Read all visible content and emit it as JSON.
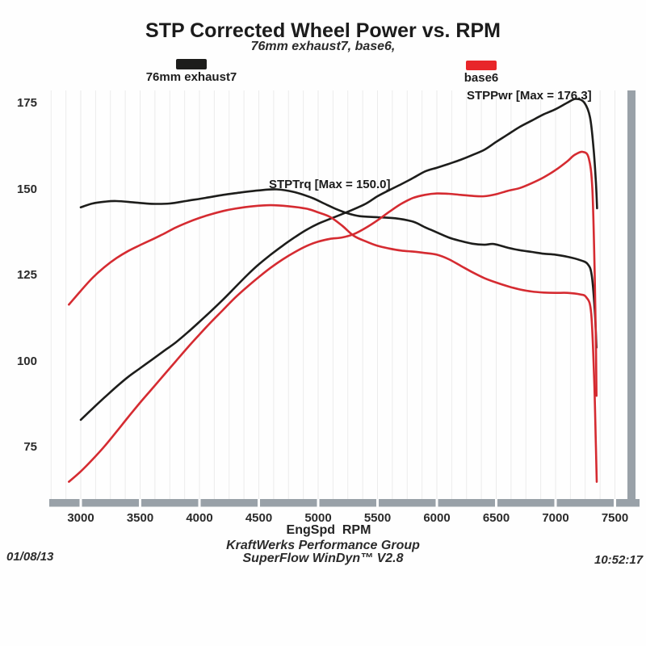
{
  "page": {
    "date": "01/08/13",
    "time": "10:52:17",
    "footer_line1": "KraftWerks Performance Group",
    "footer_line2": "SuperFlow WinDyn™ V2.8"
  },
  "legend": [
    {
      "label": "76mm exhaust7",
      "color": "#1d1d1b"
    },
    {
      "label": "base6",
      "color": "#e8262a"
    }
  ],
  "annotations": [
    {
      "text": "STPPwr [Max = 176.3]"
    },
    {
      "text": "STPTrq [Max = 150.0]"
    }
  ],
  "colors": {
    "curve_black": "#1d1d1b",
    "curve_red": "#d52b31",
    "axis_bar": "#99a1a8",
    "grid": "#ebebeb",
    "text": "#1f1f1f"
  },
  "chart_data": {
    "type": "line",
    "title": "STP Corrected Wheel Power vs. RPM",
    "subtitle": "76mm exhaust7, base6,",
    "xlabel": "EngSpd  RPM",
    "x_ticks": [
      3000,
      3500,
      4000,
      4500,
      5000,
      5500,
      6000,
      6500,
      7000,
      7500
    ],
    "y_ticks": [
      175,
      150,
      125,
      100,
      75
    ],
    "x_range_rpm": [
      2735,
      7600
    ],
    "y_range": [
      60,
      179
    ],
    "grid": "faint vertical minor gridlines every 125 RPM, no horizontal gridlines",
    "legend_position": "top",
    "series": [
      {
        "id": "76mm-exhaust7-stppwr",
        "name": "76mm exhaust7 — STPPwr",
        "color": "#1d1d1b",
        "points": [
          [
            3000,
            83
          ],
          [
            3100,
            86.3
          ],
          [
            3200,
            89.5
          ],
          [
            3300,
            92.6
          ],
          [
            3400,
            95.5
          ],
          [
            3500,
            98
          ],
          [
            3600,
            100.5
          ],
          [
            3700,
            103
          ],
          [
            3800,
            105.5
          ],
          [
            3900,
            108.4
          ],
          [
            4000,
            111.5
          ],
          [
            4100,
            114.7
          ],
          [
            4200,
            118
          ],
          [
            4300,
            121.5
          ],
          [
            4400,
            125
          ],
          [
            4500,
            128.2
          ],
          [
            4600,
            131
          ],
          [
            4700,
            133.6
          ],
          [
            4800,
            136
          ],
          [
            4900,
            138.2
          ],
          [
            5000,
            140
          ],
          [
            5100,
            141.4
          ],
          [
            5250,
            143.5
          ],
          [
            5400,
            145.8
          ],
          [
            5500,
            148
          ],
          [
            5600,
            149.8
          ],
          [
            5700,
            151.5
          ],
          [
            5800,
            153.3
          ],
          [
            5900,
            155.2
          ],
          [
            6000,
            156.3
          ],
          [
            6100,
            157.4
          ],
          [
            6200,
            158.6
          ],
          [
            6300,
            160
          ],
          [
            6400,
            161.5
          ],
          [
            6500,
            163.8
          ],
          [
            6600,
            166
          ],
          [
            6700,
            168.2
          ],
          [
            6800,
            170
          ],
          [
            6900,
            171.8
          ],
          [
            7000,
            173.3
          ],
          [
            7100,
            175.2
          ],
          [
            7170,
            176.3
          ],
          [
            7240,
            175.3
          ],
          [
            7290,
            171
          ],
          [
            7320,
            162
          ],
          [
            7340,
            152
          ],
          [
            7350,
            144.5
          ]
        ]
      },
      {
        "id": "76mm-exhaust7-stptrq",
        "name": "76mm exhaust7 — STPTrq",
        "color": "#1d1d1b",
        "points": [
          [
            3000,
            144.8
          ],
          [
            3100,
            145.9
          ],
          [
            3200,
            146.4
          ],
          [
            3300,
            146.6
          ],
          [
            3450,
            146.2
          ],
          [
            3600,
            145.8
          ],
          [
            3750,
            145.9
          ],
          [
            3900,
            146.7
          ],
          [
            4050,
            147.5
          ],
          [
            4200,
            148.4
          ],
          [
            4350,
            149.1
          ],
          [
            4500,
            149.7
          ],
          [
            4650,
            150
          ],
          [
            4800,
            149.2
          ],
          [
            4950,
            147.5
          ],
          [
            5050,
            145.9
          ],
          [
            5150,
            144.3
          ],
          [
            5250,
            143
          ],
          [
            5350,
            142.2
          ],
          [
            5500,
            141.9
          ],
          [
            5650,
            141.6
          ],
          [
            5800,
            140.6
          ],
          [
            5900,
            139
          ],
          [
            6000,
            137.5
          ],
          [
            6100,
            136
          ],
          [
            6200,
            135
          ],
          [
            6300,
            134.2
          ],
          [
            6400,
            133.9
          ],
          [
            6480,
            134.1
          ],
          [
            6600,
            133
          ],
          [
            6700,
            132.3
          ],
          [
            6800,
            131.8
          ],
          [
            6900,
            131.3
          ],
          [
            7000,
            131
          ],
          [
            7100,
            130.4
          ],
          [
            7200,
            129.5
          ],
          [
            7270,
            128.3
          ],
          [
            7305,
            125
          ],
          [
            7330,
            115
          ],
          [
            7345,
            104
          ]
        ]
      },
      {
        "id": "base6-stppwr",
        "name": "base6 — STPPwr",
        "color": "#d52b31",
        "points": [
          [
            2900,
            65
          ],
          [
            3000,
            68
          ],
          [
            3100,
            71.5
          ],
          [
            3200,
            75.3
          ],
          [
            3300,
            79.5
          ],
          [
            3400,
            83.8
          ],
          [
            3500,
            88
          ],
          [
            3600,
            92
          ],
          [
            3700,
            96
          ],
          [
            3800,
            100
          ],
          [
            3900,
            104
          ],
          [
            4000,
            107.8
          ],
          [
            4100,
            111.5
          ],
          [
            4200,
            115
          ],
          [
            4300,
            118.5
          ],
          [
            4400,
            121.6
          ],
          [
            4500,
            124.5
          ],
          [
            4600,
            127.2
          ],
          [
            4700,
            129.6
          ],
          [
            4800,
            131.7
          ],
          [
            4900,
            133.5
          ],
          [
            5000,
            134.8
          ],
          [
            5100,
            135.6
          ],
          [
            5200,
            136
          ],
          [
            5300,
            137
          ],
          [
            5400,
            138.8
          ],
          [
            5500,
            141
          ],
          [
            5600,
            143.5
          ],
          [
            5700,
            145.8
          ],
          [
            5800,
            147.5
          ],
          [
            5900,
            148.4
          ],
          [
            6000,
            148.8
          ],
          [
            6100,
            148.7
          ],
          [
            6200,
            148.4
          ],
          [
            6300,
            148.1
          ],
          [
            6400,
            148
          ],
          [
            6500,
            148.6
          ],
          [
            6600,
            149.6
          ],
          [
            6700,
            150.4
          ],
          [
            6800,
            151.8
          ],
          [
            6900,
            153.5
          ],
          [
            7000,
            155.6
          ],
          [
            7100,
            158.2
          ],
          [
            7160,
            160
          ],
          [
            7230,
            160.9
          ],
          [
            7280,
            159
          ],
          [
            7310,
            150
          ],
          [
            7330,
            125
          ],
          [
            7340,
            105
          ],
          [
            7345,
            90
          ]
        ]
      },
      {
        "id": "base6-stptrq",
        "name": "base6 — STPTrq",
        "color": "#d52b31",
        "points": [
          [
            2900,
            116.5
          ],
          [
            3000,
            120.5
          ],
          [
            3100,
            124.3
          ],
          [
            3200,
            127.4
          ],
          [
            3300,
            130
          ],
          [
            3400,
            132.1
          ],
          [
            3500,
            133.8
          ],
          [
            3600,
            135.4
          ],
          [
            3700,
            137.1
          ],
          [
            3800,
            138.9
          ],
          [
            3900,
            140.4
          ],
          [
            4000,
            141.7
          ],
          [
            4100,
            142.8
          ],
          [
            4200,
            143.7
          ],
          [
            4300,
            144.4
          ],
          [
            4450,
            145.1
          ],
          [
            4600,
            145.4
          ],
          [
            4750,
            145.1
          ],
          [
            4900,
            144.4
          ],
          [
            5000,
            143.3
          ],
          [
            5100,
            142
          ],
          [
            5200,
            139.5
          ],
          [
            5300,
            136.5
          ],
          [
            5400,
            134.9
          ],
          [
            5500,
            133.6
          ],
          [
            5600,
            132.8
          ],
          [
            5700,
            132.2
          ],
          [
            5800,
            131.9
          ],
          [
            5900,
            131.5
          ],
          [
            6000,
            131
          ],
          [
            6100,
            129.7
          ],
          [
            6200,
            127.8
          ],
          [
            6300,
            125.9
          ],
          [
            6400,
            124.2
          ],
          [
            6500,
            122.9
          ],
          [
            6600,
            121.8
          ],
          [
            6700,
            120.9
          ],
          [
            6800,
            120.3
          ],
          [
            6900,
            120
          ],
          [
            7000,
            119.9
          ],
          [
            7100,
            119.9
          ],
          [
            7200,
            119.5
          ],
          [
            7260,
            118.6
          ],
          [
            7300,
            114
          ],
          [
            7325,
            95
          ],
          [
            7340,
            75
          ],
          [
            7347,
            65
          ]
        ]
      }
    ]
  }
}
